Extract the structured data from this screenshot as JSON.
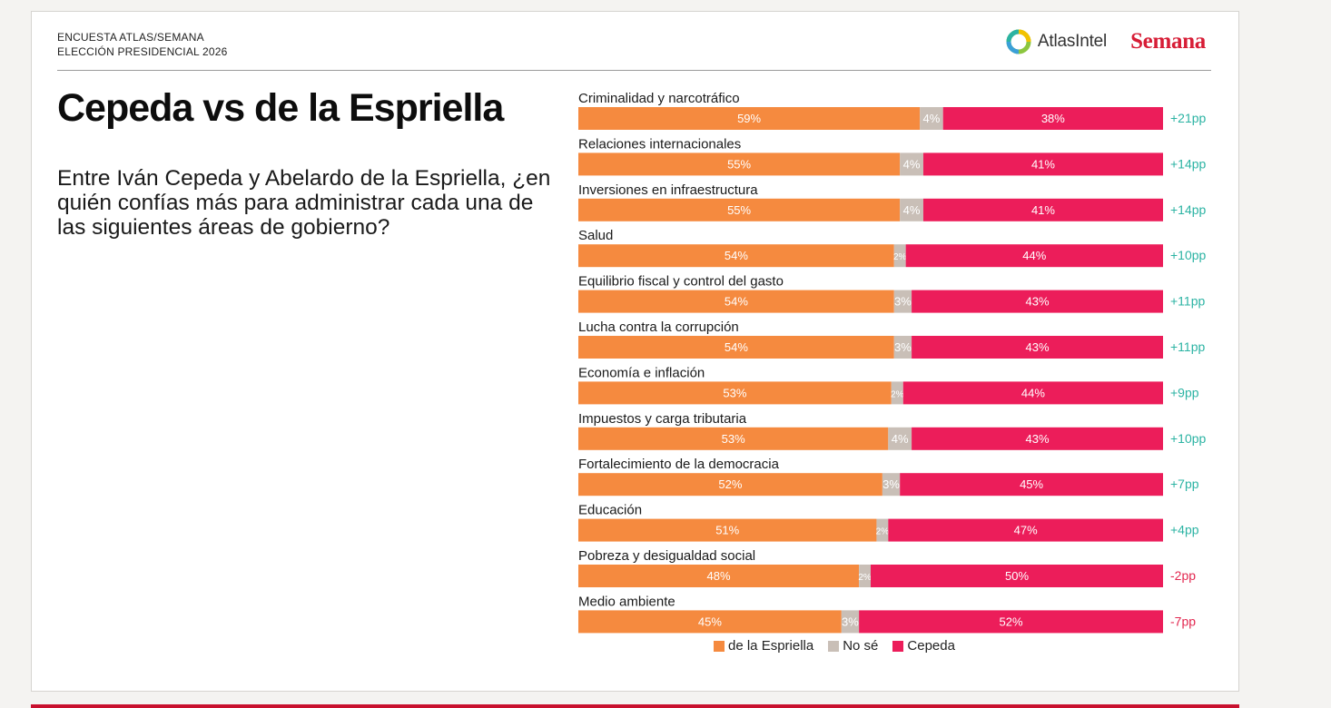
{
  "header": {
    "eyebrow_line1": "ENCUESTA ATLAS/SEMANA",
    "eyebrow_line2": "ELECCIÓN PRESIDENCIAL 2026",
    "atlas_logo_text": "AtlasIntel",
    "semana_logo_text": "Semana"
  },
  "title": "Cepeda vs de la Espriella",
  "question": "Entre Iván Cepeda y Abelardo de la Espriella, ¿en quién confías más para administrar cada una de las siguientes áreas de gobierno?",
  "colors": {
    "espriella": "#f58a3f",
    "nose": "#c9bfb7",
    "cepeda": "#ec1d5a",
    "positive_diff": "#2bb3a3",
    "negative_diff": "#e2274f",
    "semana": "#d71d36"
  },
  "chart_data": {
    "type": "bar",
    "orientation": "horizontal-stacked-100",
    "categories": [
      "Criminalidad y narcotráfico",
      "Relaciones internacionales",
      "Inversiones en infraestructura",
      "Salud",
      "Equilibrio fiscal y control del gasto",
      "Lucha contra la corrupción",
      "Economía e inflación",
      "Impuestos y carga tributaria",
      "Fortalecimiento de la democracia",
      "Educación",
      "Pobreza y desigualdad social",
      "Medio ambiente"
    ],
    "series": [
      {
        "name": "de la Espriella",
        "values": [
          59,
          55,
          55,
          54,
          54,
          54,
          53,
          53,
          52,
          51,
          48,
          45
        ]
      },
      {
        "name": "No sé",
        "values": [
          4,
          4,
          4,
          2,
          3,
          3,
          2,
          4,
          3,
          2,
          2,
          3
        ]
      },
      {
        "name": "Cepeda",
        "values": [
          38,
          41,
          41,
          44,
          43,
          43,
          44,
          43,
          45,
          47,
          50,
          52
        ]
      }
    ],
    "differences": [
      "+21pp",
      "+14pp",
      "+14pp",
      "+10pp",
      "+11pp",
      "+11pp",
      "+9pp",
      "+10pp",
      "+7pp",
      "+4pp",
      "-2pp",
      "-7pp"
    ],
    "legend_position": "bottom"
  }
}
